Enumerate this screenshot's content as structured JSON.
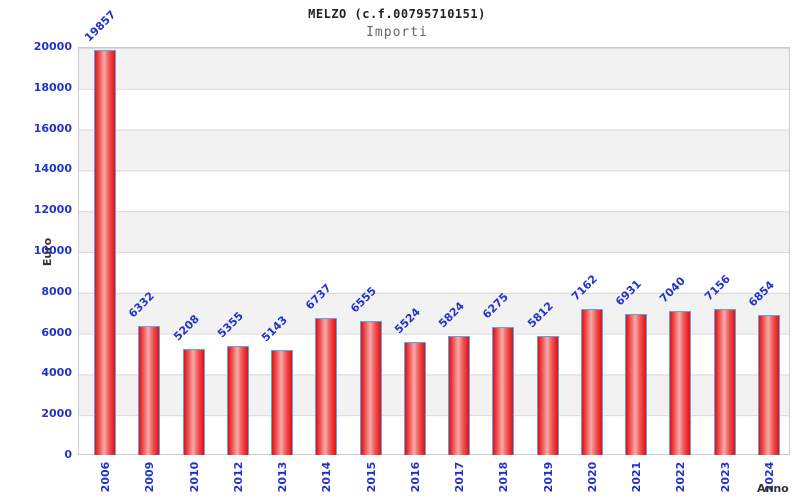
{
  "header": {
    "title": "MELZO (c.f.00795710151)",
    "subtitle": "Importi"
  },
  "axes": {
    "y_label": "Euro",
    "x_label": "Anno"
  },
  "chart_data": {
    "type": "bar",
    "title": "MELZO (c.f.00795710151)",
    "subtitle": "Importi",
    "xlabel": "Anno",
    "ylabel": "Euro",
    "categories": [
      "2006",
      "2009",
      "2010",
      "2012",
      "2013",
      "2014",
      "2015",
      "2016",
      "2017",
      "2018",
      "2019",
      "2020",
      "2021",
      "2022",
      "2023",
      "2024"
    ],
    "values": [
      19857,
      6332,
      5208,
      5355,
      5143,
      6737,
      6555,
      5524,
      5824,
      6275,
      5812,
      7162,
      6931,
      7040,
      7156,
      6854
    ],
    "bar_labels": [
      19857,
      6332,
      5208,
      5355,
      5143,
      6737,
      6555,
      5524,
      5824,
      6275,
      5812,
      7162,
      6931,
      7040,
      7156,
      6854
    ],
    "ylim": [
      0,
      20000
    ],
    "ytick_step": 2000,
    "yticks": [
      0,
      2000,
      4000,
      6000,
      8000,
      10000,
      12000,
      14000,
      16000,
      18000,
      20000
    ],
    "grid": "horizontal-bands-alternating",
    "legend": "none",
    "colors": {
      "bar_fill": "#e60f0f",
      "bar_mid": "#ef5555",
      "bar_highlight": "#f7aaaa",
      "bar_border": "#58a6ee",
      "tick_text": "#2233cc",
      "value_label_text": "#2233cc",
      "axis_title_text": "#333333",
      "title_text": "#222222",
      "subtitle_text": "#666666",
      "band_gray": "#f2f2f2",
      "band_white": "#ffffff",
      "gridline": "#d9d9d9",
      "plot_border": "#cccccc",
      "background": "#ffffff"
    }
  }
}
